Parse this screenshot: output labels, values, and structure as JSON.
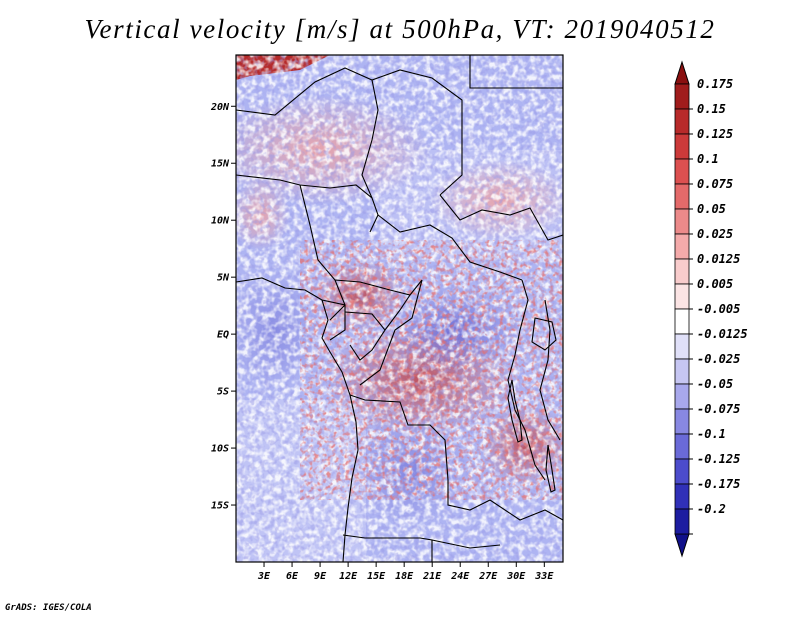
{
  "title": "Vertical velocity [m/s] at 500hPa, VT: 2019040512",
  "footer": "GrADS: IGES/COLA",
  "map": {
    "field": "vertical velocity",
    "units": "m/s",
    "level": "500hPa",
    "valid_time": "2019040512",
    "lon_range": [
      0,
      35
    ],
    "lat_range": [
      -20,
      24.5
    ],
    "lat_ticks": [
      {
        "value": 20,
        "label": "20N"
      },
      {
        "value": 15,
        "label": "15N"
      },
      {
        "value": 10,
        "label": "10N"
      },
      {
        "value": 5,
        "label": "5N"
      },
      {
        "value": 0,
        "label": "EQ"
      },
      {
        "value": -5,
        "label": "5S"
      },
      {
        "value": -10,
        "label": "10S"
      },
      {
        "value": -15,
        "label": "15S"
      }
    ],
    "lon_ticks": [
      {
        "value": 3,
        "label": "3E"
      },
      {
        "value": 6,
        "label": "6E"
      },
      {
        "value": 9,
        "label": "9E"
      },
      {
        "value": 12,
        "label": "12E"
      },
      {
        "value": 15,
        "label": "15E"
      },
      {
        "value": 18,
        "label": "18E"
      },
      {
        "value": 21,
        "label": "21E"
      },
      {
        "value": 24,
        "label": "24E"
      },
      {
        "value": 27,
        "label": "27E"
      },
      {
        "value": 30,
        "label": "30E"
      },
      {
        "value": 33,
        "label": "33E"
      }
    ]
  },
  "colorbar": {
    "levels": [
      {
        "label": "0.175",
        "color": "#a01c1c"
      },
      {
        "label": "0.15",
        "color": "#b82a2a"
      },
      {
        "label": "0.125",
        "color": "#cc3a3a"
      },
      {
        "label": "0.1",
        "color": "#dc5050"
      },
      {
        "label": "0.075",
        "color": "#e46a6a"
      },
      {
        "label": "0.05",
        "color": "#ec8a8a"
      },
      {
        "label": "0.025",
        "color": "#f4aaaa"
      },
      {
        "label": "0.0125",
        "color": "#f8cccc"
      },
      {
        "label": "0.005",
        "color": "#fbe4e4"
      },
      {
        "label": "-0.005",
        "color": "#ffffff"
      },
      {
        "label": "-0.0125",
        "color": "#e0e0f8"
      },
      {
        "label": "-0.025",
        "color": "#c6c6f2"
      },
      {
        "label": "-0.05",
        "color": "#a8a8ec"
      },
      {
        "label": "-0.075",
        "color": "#8888e2"
      },
      {
        "label": "-0.1",
        "color": "#6a6ad8"
      },
      {
        "label": "-0.125",
        "color": "#4c4ccc"
      },
      {
        "label": "-0.175",
        "color": "#3030b8"
      },
      {
        "label": "-0.2",
        "color": "#1c1ca0"
      }
    ],
    "top_color": "#8a1010",
    "bottom_color": "#10108a"
  },
  "palette": {
    "bg_blue": "#aeb4f2",
    "blue_light": "#c8cbf6",
    "blue_mid": "#8d92e8",
    "blue_dark": "#5c5cd2",
    "red_light": "#f2a4a4",
    "red_mid": "#e27070",
    "red_dark": "#b52a2a",
    "white": "#ffffff",
    "border": "#000000"
  }
}
